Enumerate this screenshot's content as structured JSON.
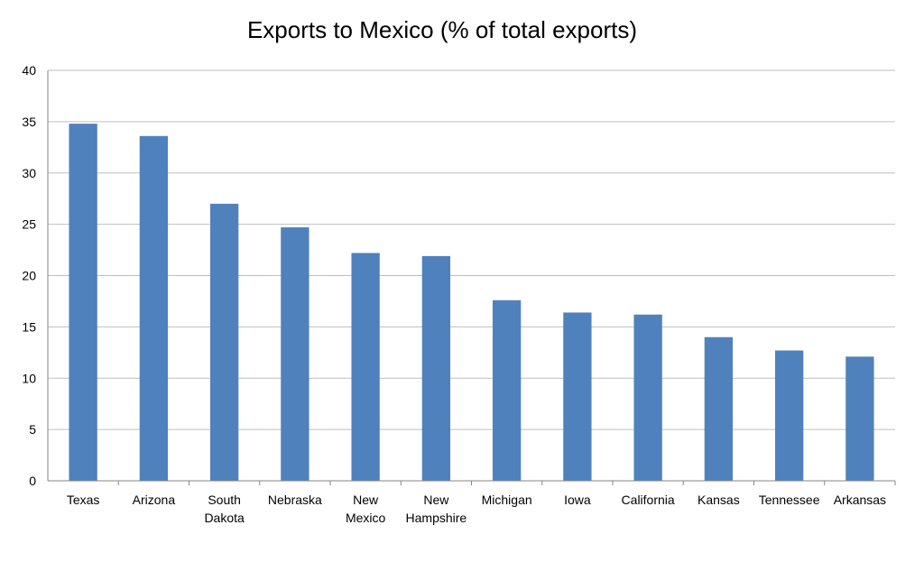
{
  "chart_data": {
    "type": "bar",
    "title": "Exports to Mexico (% of total exports)",
    "xlabel": "",
    "ylabel": "",
    "categories": [
      "Texas",
      "Arizona",
      "South Dakota",
      "Nebraska",
      "New Mexico",
      "New Hampshire",
      "Michigan",
      "Iowa",
      "California",
      "Kansas",
      "Tennessee",
      "Arkansas"
    ],
    "category_lines": [
      [
        "Texas"
      ],
      [
        "Arizona"
      ],
      [
        "South",
        "Dakota"
      ],
      [
        "Nebraska"
      ],
      [
        "New",
        "Mexico"
      ],
      [
        "New",
        "Hampshire"
      ],
      [
        "Michigan"
      ],
      [
        "Iowa"
      ],
      [
        "California"
      ],
      [
        "Kansas"
      ],
      [
        "Tennessee"
      ],
      [
        "Arkansas"
      ]
    ],
    "values": [
      34.8,
      33.6,
      27.0,
      24.7,
      22.2,
      21.9,
      17.6,
      16.4,
      16.2,
      14.0,
      12.7,
      12.1
    ],
    "ylim": [
      0,
      40
    ],
    "yticks": [
      0,
      5,
      10,
      15,
      20,
      25,
      30,
      35,
      40
    ],
    "grid": true,
    "legend": "none",
    "bar_color": "#4f81bd",
    "grid_color": "#bfbfbf"
  }
}
